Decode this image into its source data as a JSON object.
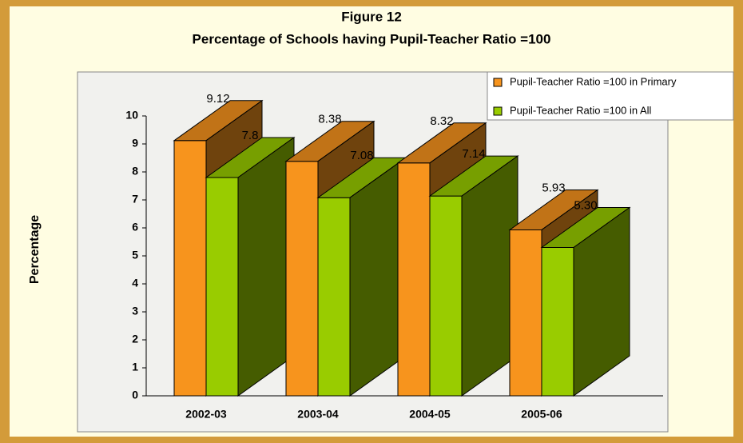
{
  "chart_data": {
    "type": "bar3d",
    "title": "Figure 12",
    "subtitle": "Percentage of Schools having Pupil-Teacher Ratio =100",
    "y_label": "Percentage",
    "categories": [
      "2002-03",
      "2003-04",
      "2004-05",
      "2005-06"
    ],
    "series": [
      {
        "name": "Pupil-Teacher Ratio  =100 in Primary",
        "color": "#f7941d",
        "values": [
          9.12,
          8.38,
          8.32,
          5.93
        ],
        "value_labels": [
          "9.12",
          "8.38",
          "8.32",
          "5.93"
        ]
      },
      {
        "name": "Pupil-Teacher Ratio  =100 in All",
        "color": "#99cc00",
        "values": [
          7.8,
          7.08,
          7.14,
          5.3
        ],
        "value_labels": [
          "7.8",
          "7.08",
          "7.14",
          "5.30"
        ]
      }
    ],
    "ylim": [
      0,
      10
    ],
    "yticks": [
      0,
      1,
      2,
      3,
      4,
      5,
      6,
      7,
      8,
      9,
      10
    ],
    "legend": "top-right"
  }
}
